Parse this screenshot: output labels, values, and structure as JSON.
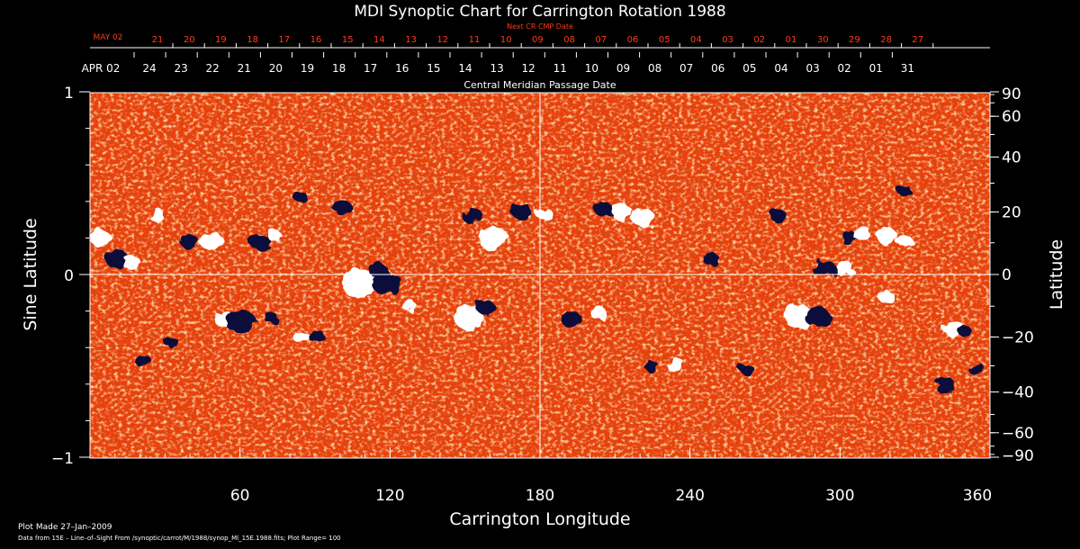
{
  "chart_data": {
    "type": "heatmap",
    "title": "MDI Synoptic Chart for Carrington Rotation 1988",
    "xlabel": "Carrington Longitude",
    "ylabel_left": "Sine Latitude",
    "ylabel_right": "Latitude",
    "xlim": [
      0,
      360
    ],
    "ylim": [
      -1,
      1
    ],
    "x_ticks": [
      "60",
      "120",
      "180",
      "240",
      "300",
      "360"
    ],
    "y_ticks_left": [
      "1",
      "0",
      "−1"
    ],
    "y_ticks_right": [
      "90",
      "60",
      "40",
      "20",
      "0",
      "−20",
      "−40",
      "−60",
      "−90"
    ],
    "lat_values": [
      90,
      60,
      40,
      20,
      0,
      -20,
      -40,
      -60,
      -90
    ],
    "cmp_axis_title": "Central Meridian Passage Date",
    "cmp_start_label": "APR 02",
    "cmp_dates": [
      "24",
      "23",
      "22",
      "21",
      "20",
      "19",
      "18",
      "17",
      "16",
      "15",
      "14",
      "13",
      "12",
      "11",
      "10",
      "09",
      "08",
      "07",
      "06",
      "05",
      "04",
      "03",
      "02",
      "01",
      "31"
    ],
    "next_axis_title": "Next CR CMP Date",
    "next_start_label": "MAY 02",
    "next_dates": [
      "21",
      "20",
      "19",
      "18",
      "17",
      "16",
      "15",
      "14",
      "13",
      "12",
      "11",
      "10",
      "09",
      "08",
      "07",
      "06",
      "05",
      "04",
      "03",
      "02",
      "01",
      "30",
      "29",
      "28",
      "27"
    ],
    "footer_plot_made": "Plot Made 27–Jan–2009",
    "footer_source": "Data from 15E – Line–of–Sight From /synoptic/carrot/M/1988/synop_Ml_15E.1988.fits; Plot Range= 100",
    "colors": {
      "background": "#000000",
      "field_base": "#e8400a",
      "positive": "#ffffff",
      "negative": "#0a0a3a",
      "red_text": "#ff3a1a"
    }
  }
}
